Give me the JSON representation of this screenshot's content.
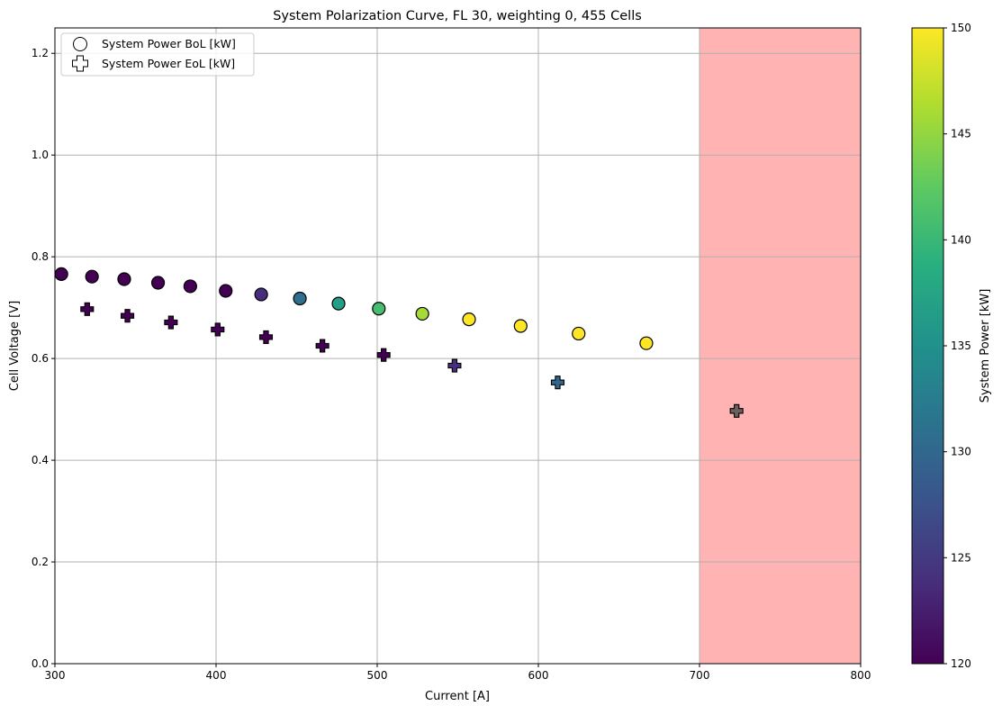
{
  "chart_data": {
    "type": "scatter",
    "title": "System Polarization Curve, FL 30, weighting 0, 455 Cells",
    "xlabel": "Current [A]",
    "ylabel": "Cell Voltage [V]",
    "xlim": [
      300,
      800
    ],
    "ylim": [
      0,
      1.25
    ],
    "x_ticks": [
      "300",
      "400",
      "500",
      "600",
      "700",
      "800"
    ],
    "y_ticks": [
      "0.0",
      "0.2",
      "0.4",
      "0.6",
      "0.8",
      "1.0",
      "1.2"
    ],
    "grid": true,
    "legend_position": "top-left",
    "shaded_region": {
      "x_from": 700,
      "x_to": 800,
      "color": "#ffb3b3"
    },
    "series": [
      {
        "name": "System Power BoL [kW]",
        "marker": "circle",
        "points": [
          {
            "x": 304,
            "y": 0.766,
            "power": 120
          },
          {
            "x": 323,
            "y": 0.761,
            "power": 120
          },
          {
            "x": 343,
            "y": 0.756,
            "power": 120
          },
          {
            "x": 364,
            "y": 0.749,
            "power": 120
          },
          {
            "x": 384,
            "y": 0.742,
            "power": 120
          },
          {
            "x": 406,
            "y": 0.733,
            "power": 120
          },
          {
            "x": 428,
            "y": 0.726,
            "power": 124
          },
          {
            "x": 452,
            "y": 0.718,
            "power": 131
          },
          {
            "x": 476,
            "y": 0.708,
            "power": 137
          },
          {
            "x": 501,
            "y": 0.698,
            "power": 141
          },
          {
            "x": 528,
            "y": 0.688,
            "power": 146
          },
          {
            "x": 557,
            "y": 0.677,
            "power": 150
          },
          {
            "x": 589,
            "y": 0.664,
            "power": 150
          },
          {
            "x": 625,
            "y": 0.649,
            "power": 150
          },
          {
            "x": 667,
            "y": 0.63,
            "power": 150
          }
        ]
      },
      {
        "name": "System Power EoL [kW]",
        "marker": "plus",
        "points": [
          {
            "x": 320,
            "y": 0.697,
            "power": 120
          },
          {
            "x": 345,
            "y": 0.684,
            "power": 120
          },
          {
            "x": 372,
            "y": 0.671,
            "power": 120
          },
          {
            "x": 401,
            "y": 0.657,
            "power": 120
          },
          {
            "x": 431,
            "y": 0.642,
            "power": 120
          },
          {
            "x": 466,
            "y": 0.625,
            "power": 120
          },
          {
            "x": 504,
            "y": 0.607,
            "power": 120
          },
          {
            "x": 548,
            "y": 0.586,
            "power": 124
          },
          {
            "x": 612,
            "y": 0.553,
            "power": 130
          },
          {
            "x": 723,
            "y": 0.497,
            "power": 0,
            "color_override": "#6a6060"
          }
        ]
      }
    ],
    "colorbar": {
      "label": "System Power [kW]",
      "range": [
        120,
        150
      ],
      "ticks": [
        "120",
        "125",
        "130",
        "135",
        "140",
        "145",
        "150"
      ],
      "colormap": "viridis"
    }
  }
}
